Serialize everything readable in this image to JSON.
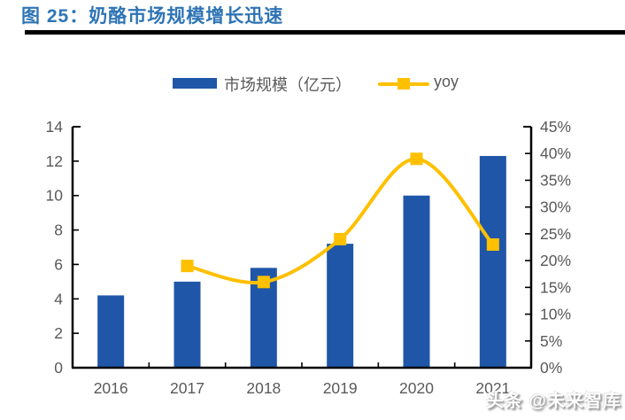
{
  "figure": {
    "title": "图 25：奶酪市场规模增长迅速"
  },
  "watermark": "头条 @未来智库",
  "colors": {
    "bar": "#1F56A8",
    "line": "#FFC000",
    "title": "#2E74B5",
    "axis": "#000000",
    "tick_label": "#595959"
  },
  "chart_data": {
    "type": "bar+line combo",
    "title": "奶酪市场规模增长迅速",
    "categories": [
      "2016",
      "2017",
      "2018",
      "2019",
      "2020",
      "2021"
    ],
    "series": [
      {
        "name": "市场规模（亿元）",
        "type": "bar",
        "axis": "left",
        "values": [
          4.2,
          5.0,
          5.8,
          7.2,
          10.0,
          12.3
        ]
      },
      {
        "name": "yoy",
        "type": "line",
        "axis": "right",
        "values_percent": [
          null,
          19,
          16,
          24,
          39,
          23
        ]
      }
    ],
    "left_axis": {
      "min": 0,
      "max": 14,
      "step": 2,
      "ticks": [
        "0",
        "2",
        "4",
        "6",
        "8",
        "10",
        "12",
        "14"
      ]
    },
    "right_axis": {
      "min": 0,
      "max": 45,
      "step": 5,
      "ticks": [
        "0%",
        "5%",
        "10%",
        "15%",
        "20%",
        "25%",
        "30%",
        "35%",
        "40%",
        "45%"
      ]
    },
    "grid": false,
    "legend_position": "top"
  }
}
